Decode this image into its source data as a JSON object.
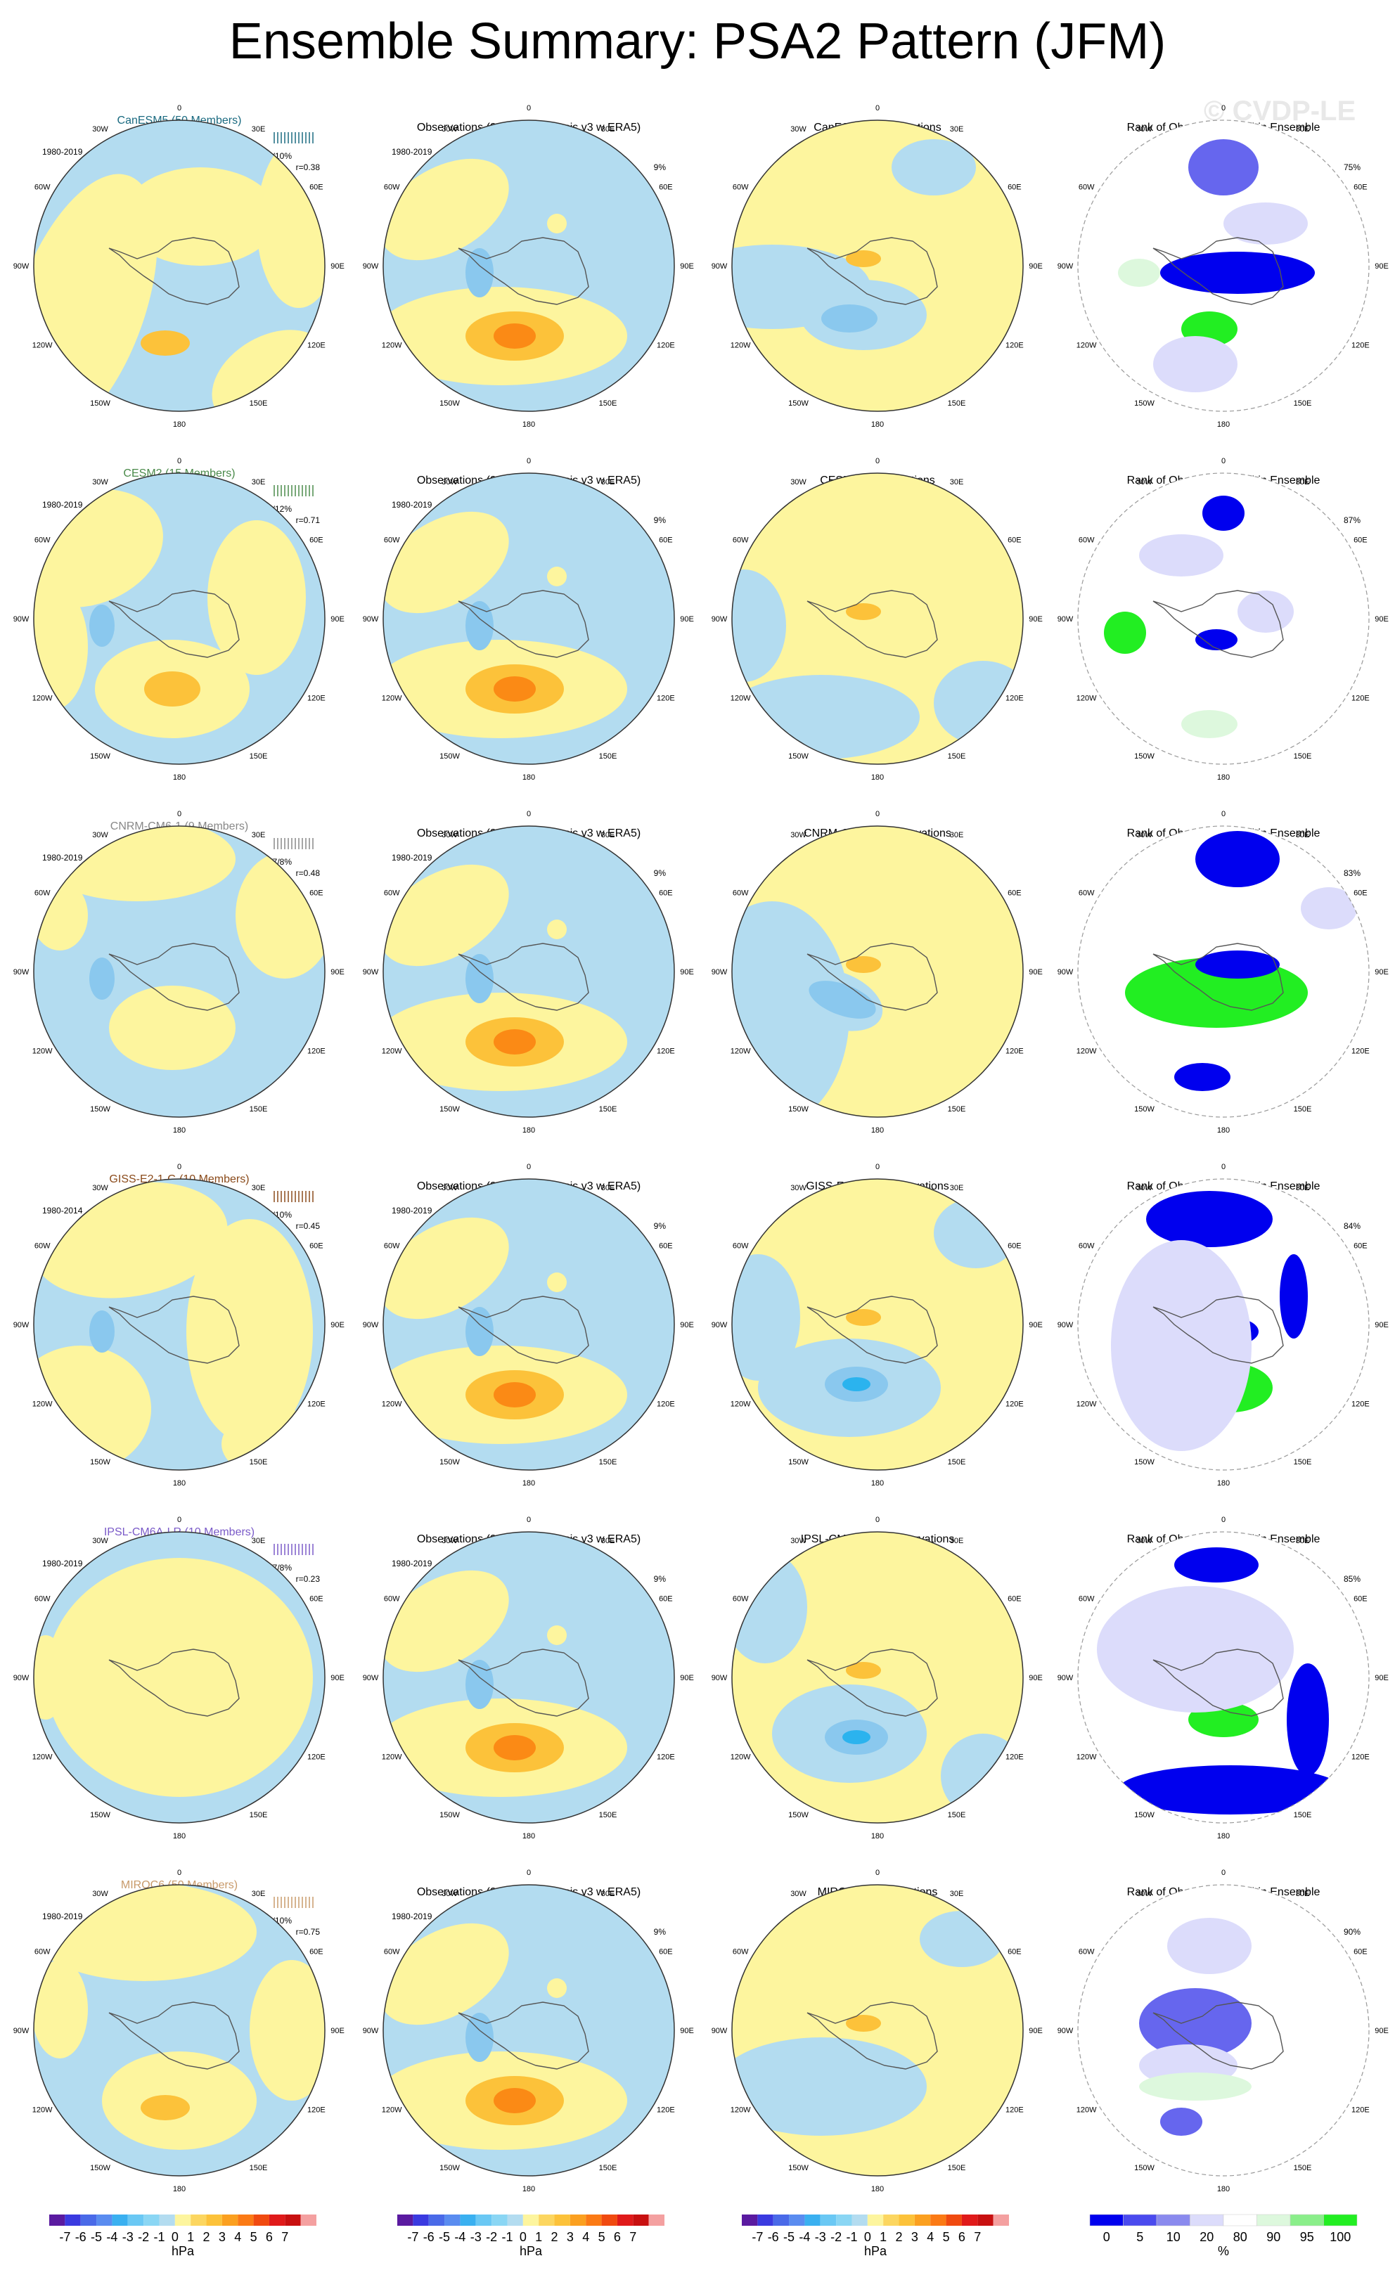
{
  "title": "Ensemble Summary: PSA2 Pattern (JFM)",
  "watermark": "© CVDP-LE",
  "colors": {
    "ocean_neg": "#b3dcf0",
    "pos": "#fdf59e",
    "pos2": "#fcc23a",
    "pos3": "#fb8a15",
    "neg2": "#8ac8ee",
    "neg3": "#2bb3ee",
    "rank_low": "#0000ee",
    "rank_low2": "#6666ee",
    "rank_low3": "#dcdcfb",
    "rank_high": "#22ee22",
    "rank_high2": "#ddf8dd"
  },
  "longitude_labels": [
    "0",
    "30E",
    "60E",
    "90E",
    "120E",
    "150E",
    "180",
    "150W",
    "120W",
    "90W",
    "60W",
    "30W"
  ],
  "rows": [
    {
      "model": "CanESM5 (50 Members)",
      "model_color": "#1a6a80",
      "period": "1980-2019",
      "pct": "7/8/10%",
      "r": "r=0.38",
      "obs_title": "Observations (20thC Reanalysis v3 w ERA5)",
      "obs_period": "1980-2019",
      "obs_pct": "9%",
      "diff_title": "CanESM5 - Observations",
      "rank_title": "Rank of Observations within Ensemble",
      "rank_pct": "75%"
    },
    {
      "model": "CESM2 (15 Members)",
      "model_color": "#4a8a4a",
      "period": "1980-2019",
      "pct": "8/10/12%",
      "r": "r=0.71",
      "obs_title": "Observations (20thC Reanalysis v3 w ERA5)",
      "obs_period": "1980-2019",
      "obs_pct": "9%",
      "diff_title": "CESM2 - Observations",
      "rank_title": "Rank of Observations within Ensemble",
      "rank_pct": "87%"
    },
    {
      "model": "CNRM-CM6-1 (9 Members)",
      "model_color": "#888888",
      "period": "1980-2019",
      "pct": "5/7/8%",
      "r": "r=0.48",
      "obs_title": "Observations (20thC Reanalysis v3 w ERA5)",
      "obs_period": "1980-2019",
      "obs_pct": "9%",
      "diff_title": "CNRM-CM6-1 - Observations",
      "rank_title": "Rank of Observations within Ensemble",
      "rank_pct": "83%"
    },
    {
      "model": "GISS-E2-1-G (10 Members)",
      "model_color": "#8a4a1a",
      "period": "1980-2014",
      "pct": "6/9/10%",
      "r": "r=0.45",
      "obs_title": "Observations (20thC Reanalysis v3 w ERA5)",
      "obs_period": "1980-2019",
      "obs_pct": "9%",
      "diff_title": "GISS-E2-1-G - Observations",
      "rank_title": "Rank of Observations within Ensemble",
      "rank_pct": "84%"
    },
    {
      "model": "IPSL-CM6A-LR (10 Members)",
      "model_color": "#7a5ac8",
      "period": "1980-2019",
      "pct": "5/7/8%",
      "r": "r=0.23",
      "obs_title": "Observations (20thC Reanalysis v3 w ERA5)",
      "obs_period": "1980-2019",
      "obs_pct": "9%",
      "diff_title": "IPSL-CM6A-LR - Observations",
      "rank_title": "Rank of Observations within Ensemble",
      "rank_pct": "85%"
    },
    {
      "model": "MIROC6 (50 Members)",
      "model_color": "#c89a6a",
      "period": "1980-2019",
      "pct": "7/8/10%",
      "r": "r=0.75",
      "obs_title": "Observations (20thC Reanalysis v3 w ERA5)",
      "obs_period": "1980-2019",
      "obs_pct": "9%",
      "diff_title": "MIROC6 - Observations",
      "rank_title": "Rank of Observations within Ensemble",
      "rank_pct": "90%"
    }
  ],
  "chart_data": {
    "type": "heatmap",
    "title": "Ensemble Summary: PSA2 Pattern (JFM)",
    "projection": "south-polar stereographic",
    "colorbar_hpa": {
      "labels": [
        "-7",
        "-6",
        "-5",
        "-4",
        "-3",
        "-2",
        "-1",
        "0",
        "1",
        "2",
        "3",
        "4",
        "5",
        "6",
        "7"
      ],
      "unit": "hPa",
      "colors": [
        "#5a1aa0",
        "#3a3ae0",
        "#4a6ae8",
        "#5a8cf0",
        "#3ab0f0",
        "#6ac8f4",
        "#8ad6f4",
        "#b3dcf0",
        "#fdf59e",
        "#fcd660",
        "#fcc23a",
        "#fba020",
        "#fb7a15",
        "#f04a10",
        "#e01a1a",
        "#c81010",
        "#f4a0a0"
      ]
    },
    "colorbar_rank": {
      "labels": [
        "0",
        "5",
        "10",
        "20",
        "80",
        "90",
        "95",
        "100"
      ],
      "unit": "%",
      "colors": [
        "#0000ee",
        "#4a4aee",
        "#8a8aee",
        "#dcdcfb",
        "#ffffff",
        "#ddf8dd",
        "#8aee8a",
        "#22ee22"
      ]
    }
  }
}
